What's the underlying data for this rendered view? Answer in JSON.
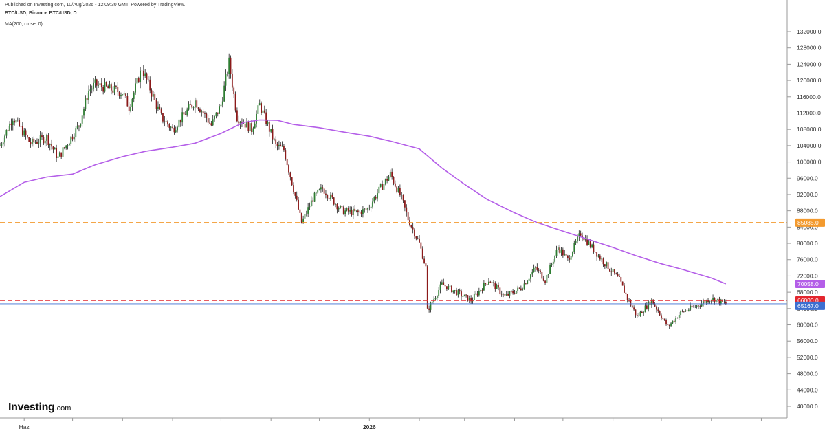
{
  "header": {
    "published": "Published on Investing.com, 10/Aug/2026 - 12:09:30 GMT, Powered by TradingView.",
    "symbol": "BTC/USD, Binance:BTC/USD, D",
    "indicator": "MA(200, close, 0)"
  },
  "logo": {
    "brand": "Investing",
    "suffix": ".com"
  },
  "colors": {
    "up_candle": "#2e7d32",
    "down_candle": "#8b1a1a",
    "wick": "#1b1b1b",
    "ma_line": "#b45ee8",
    "resistance_line": "#f39a2e",
    "support_line": "#e3262e",
    "price_line": "#3d6fd1",
    "axis": "#9a9a9a"
  },
  "chart_data": {
    "type": "candlestick",
    "title": "BTC/USD, Binance:BTC/USD, D",
    "y_axis": {
      "position": "right",
      "range": [
        37000,
        135000
      ],
      "ticks": [
        "132000.0",
        "128000.0",
        "124000.0",
        "120000.0",
        "116000.0",
        "112000.0",
        "108000.0",
        "104000.0",
        "100000.0",
        "96000.0",
        "92000.0",
        "88000.0",
        "84000.0",
        "80000.0",
        "76000.0",
        "72000.0",
        "68000.0",
        "64000.0",
        "60000.0",
        "56000.0",
        "52000.0",
        "48000.0",
        "44000.0",
        "40000.0"
      ]
    },
    "x_axis": {
      "labels": [
        {
          "text": "Haz",
          "date": "2025-06-01"
        },
        {
          "text": "2026",
          "date": "2026-01-01"
        }
      ],
      "range": [
        "2025-05-17",
        "2026-09-17"
      ]
    },
    "grid": false,
    "price_anchors": {
      "dates": [
        "2025-05-17",
        "2025-05-25",
        "2025-06-05",
        "2025-06-15",
        "2025-06-22",
        "2025-07-05",
        "2025-07-11",
        "2025-07-15",
        "2025-08-01",
        "2025-08-05",
        "2025-08-13",
        "2025-08-25",
        "2025-09-01",
        "2025-09-15",
        "2025-09-25",
        "2025-10-01",
        "2025-10-06",
        "2025-10-11",
        "2025-10-20",
        "2025-10-25",
        "2025-11-04",
        "2025-11-09",
        "2025-11-14",
        "2025-11-20",
        "2025-11-27",
        "2025-12-03",
        "2025-12-15",
        "2025-12-25",
        "2025-12-31",
        "2026-01-07",
        "2026-01-14",
        "2026-01-21",
        "2026-01-25",
        "2026-02-01",
        "2026-02-05",
        "2026-02-06",
        "2026-02-15",
        "2026-02-24",
        "2026-03-05",
        "2026-03-16",
        "2026-03-26",
        "2026-04-05",
        "2026-04-14",
        "2026-04-20",
        "2026-04-28",
        "2026-05-04",
        "2026-05-12",
        "2026-05-25",
        "2026-06-05",
        "2026-06-10",
        "2026-06-16",
        "2026-06-25",
        "2026-07-05",
        "2026-07-13",
        "2026-07-22",
        "2026-08-01",
        "2026-08-10"
      ],
      "closes": [
        104000,
        111000,
        104500,
        106000,
        101000,
        109000,
        117500,
        119000,
        117000,
        113500,
        123000,
        111000,
        108000,
        115000,
        109000,
        114000,
        124500,
        111000,
        108000,
        114000,
        104000,
        103000,
        95000,
        85000,
        91000,
        93500,
        88000,
        87500,
        88500,
        93000,
        97000,
        91000,
        86000,
        80000,
        74000,
        63500,
        70000,
        68000,
        66000,
        71000,
        67000,
        69000,
        74000,
        71000,
        79000,
        76000,
        82500,
        76000,
        71000,
        66500,
        62000,
        66000,
        59500,
        63000,
        64500,
        66500,
        65167
      ]
    },
    "moving_average": {
      "name": "MA(200, close, 0)",
      "dates": [
        "2025-05-17",
        "2025-06-01",
        "2025-06-15",
        "2025-07-01",
        "2025-07-15",
        "2025-08-01",
        "2025-08-15",
        "2025-09-01",
        "2025-09-15",
        "2025-10-01",
        "2025-10-15",
        "2025-10-25",
        "2025-11-05",
        "2025-11-15",
        "2025-12-01",
        "2025-12-15",
        "2026-01-01",
        "2026-01-15",
        "2026-02-01",
        "2026-02-15",
        "2026-03-01",
        "2026-03-15",
        "2026-04-01",
        "2026-04-15",
        "2026-05-01",
        "2026-05-15",
        "2026-06-01",
        "2026-06-15",
        "2026-07-01",
        "2026-07-15",
        "2026-08-01",
        "2026-08-10"
      ],
      "values": [
        91500,
        95000,
        96300,
        97000,
        99300,
        101300,
        102600,
        103600,
        104600,
        107000,
        109700,
        110300,
        110200,
        109200,
        108400,
        107400,
        106300,
        105000,
        103200,
        98500,
        94500,
        90800,
        87500,
        85100,
        83000,
        81200,
        79000,
        77000,
        75000,
        73500,
        71500,
        70058
      ]
    },
    "horizontal_lines": [
      {
        "value": 85085.0,
        "label": "85085.0",
        "style": "dashed",
        "color": "#f39a2e"
      },
      {
        "value": 66000.0,
        "label": "66000.0",
        "style": "dashed",
        "color": "#e3262e"
      },
      {
        "value": 65167.0,
        "label": "65167.0",
        "style": "solid",
        "color": "#3d6fd1"
      }
    ],
    "price_labels": [
      {
        "value": 85085.0,
        "text": "85085.0",
        "color": "#f39a2e"
      },
      {
        "value": 70058.0,
        "text": "70058.0",
        "color": "#b45ee8"
      },
      {
        "value": 66000.0,
        "text": "66000.0",
        "color": "#e3262e"
      },
      {
        "value": 65167.0,
        "text": "65167.0",
        "color": "#3d6fd1"
      }
    ],
    "last_close": 65167.0
  }
}
